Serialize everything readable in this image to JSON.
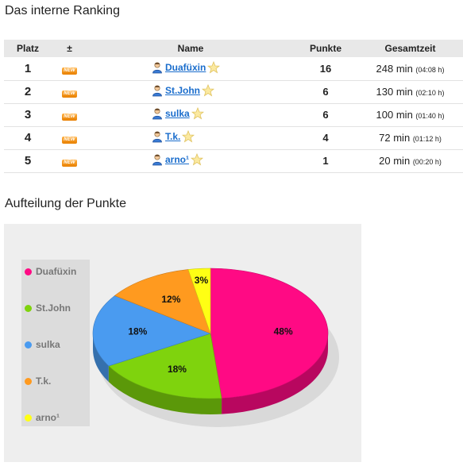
{
  "ranking": {
    "title": "Das interne Ranking",
    "headers": {
      "platz": "Platz",
      "change": "±",
      "name": "Name",
      "punkte": "Punkte",
      "gesamtzeit": "Gesamtzeit"
    },
    "badge": "NEW",
    "rows": [
      {
        "platz": "1",
        "name": "Duafüxin",
        "punkte": "16",
        "zeit": "248 min",
        "zeit_sub": "(04:08 h)"
      },
      {
        "platz": "2",
        "name": "St.John",
        "punkte": "6",
        "zeit": "130 min",
        "zeit_sub": "(02:10 h)"
      },
      {
        "platz": "3",
        "name": "sulka",
        "punkte": "6",
        "zeit": "100 min",
        "zeit_sub": "(01:40 h)"
      },
      {
        "platz": "4",
        "name": "T.k.",
        "punkte": "4",
        "zeit": "72 min",
        "zeit_sub": "(01:12 h)"
      },
      {
        "platz": "5",
        "name": "arno¹",
        "punkte": "1",
        "zeit": "20 min",
        "zeit_sub": "(00:20 h)"
      }
    ]
  },
  "chart": {
    "title": "Aufteilung der Punkte"
  },
  "chart_data": {
    "type": "pie",
    "title": "",
    "legend_position": "left",
    "slices": [
      {
        "label": "Duafüxin",
        "value": 48,
        "display": "48%",
        "color": "#ff0a84"
      },
      {
        "label": "St.John",
        "value": 18,
        "display": "18%",
        "color": "#7fd30d"
      },
      {
        "label": "sulka",
        "value": 18,
        "display": "18%",
        "color": "#4a9bf0"
      },
      {
        "label": "T.k.",
        "value": 12,
        "display": "12%",
        "color": "#ff9a1f"
      },
      {
        "label": "arno¹",
        "value": 3,
        "display": "3%",
        "color": "#ffff14"
      }
    ]
  }
}
